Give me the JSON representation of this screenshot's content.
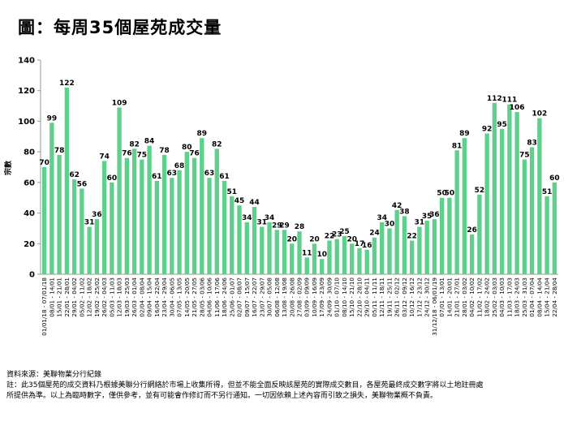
{
  "title": "圖：每周35個屋苑成交量",
  "chart_data": {
    "type": "bar",
    "title": "圖：每周35個屋苑成交量",
    "ylabel": "宗數",
    "xlabel": "",
    "ylim": [
      0,
      140
    ],
    "yticks": [
      0,
      20,
      40,
      60,
      80,
      100,
      120,
      140
    ],
    "grid": false,
    "bar_color": "#5fd08c",
    "categories": [
      "01/01/18 - 07/01/18",
      "08/01 - 14/01",
      "15/01 - 21/01",
      "22/01 - 28/01",
      "29/01 - 04/02",
      "05/02 - 11/02",
      "12/02 - 18/02",
      "19/02 - 25/02",
      "26/02 - 04/03",
      "05/03 - 11/03",
      "12/03 - 18/03",
      "19/03 - 25/03",
      "26/03 - 01/04",
      "02/04 - 08/04",
      "09/04 - 15/04",
      "16/04 - 22/04",
      "23/04 - 29/04",
      "30/04 - 06/05",
      "07/05 - 13/05",
      "14/05 - 20/05",
      "21/05 - 27/05",
      "28/05 - 03/06",
      "04/06 - 10/06",
      "11/06 - 17/06",
      "18/06 - 24/06",
      "25/06 - 01/07",
      "02/07 - 08/07",
      "09/07 - 15/07",
      "16/07 - 22/07",
      "23/07 - 29/07",
      "30/07 - 05/08",
      "06/08 - 12/08",
      "13/08 - 19/08",
      "20/08 - 26/08",
      "27/08 - 02/09",
      "03/09 - 09/09",
      "10/09 - 16/09",
      "17/09 - 23/09",
      "24/09 - 30/09",
      "01/10 - 07/10",
      "08/10 - 14/10",
      "15/10 - 21/10",
      "22/10 - 28/10",
      "29/10 - 04/11",
      "05/11 - 11/11",
      "12/11 - 18/11",
      "19/11 - 25/11",
      "26/11 - 02/12",
      "03/12 - 09/12",
      "10/12 - 16/12",
      "17/12 - 23/12",
      "24/12 - 30/12",
      "31/12/18 - 06/01/19",
      "07/01 - 13/01",
      "14/01 - 20/01",
      "21/01 - 27/01",
      "28/01 - 03/02",
      "04/02 - 10/02",
      "11/02 - 17/02",
      "18/02 - 24/02",
      "25/02 - 03/03",
      "04/03 - 10/03",
      "11/03 - 17/03",
      "18/03 - 24/03",
      "25/03 - 31/03",
      "01/04 - 07/04",
      "08/04 - 14/04",
      "15/04 - 21/04",
      "22/04 - 28/04"
    ],
    "values": [
      70,
      99,
      78,
      122,
      62,
      56,
      31,
      36,
      74,
      60,
      109,
      76,
      82,
      75,
      84,
      61,
      78,
      63,
      68,
      80,
      76,
      89,
      63,
      82,
      61,
      51,
      45,
      34,
      44,
      31,
      34,
      29,
      29,
      20,
      28,
      11,
      20,
      10,
      22,
      23,
      25,
      20,
      17,
      16,
      24,
      34,
      30,
      42,
      38,
      22,
      31,
      35,
      36,
      50,
      50,
      81,
      89,
      26,
      52,
      92,
      112,
      95,
      111,
      106,
      75,
      83,
      102,
      51,
      60
    ],
    "x_tick_labels": [
      "01/01/18 - 07/01/18",
      "08/01 - 14/01",
      "15/01 - 21/01",
      "22/01 - 28/01",
      "29/01 - 04/02",
      "05/02 - 11/02",
      "12/02 - 18/02",
      "19/02 - 25/02",
      "26/02 - 04/03",
      "05/03 - 11/03",
      "12/03 - 18/03",
      "19/03 - 25/03",
      "26/03 - 01/04",
      "02/04 - 08/04",
      "09/04 - 15/04",
      "16/04 - 22/04",
      "23/04 - 29/04",
      "30/04 - 06/05",
      "07/05 - 13/05",
      "14/05 - 20/05",
      "21/05 - 27/05",
      "28/05 - 03/06",
      "04/06 - 10/06",
      "11/06 - 17/06",
      "18/06 - 24/06",
      "25/06 - 01/07",
      "02/07 - 08/07",
      "09/07 - 15/07",
      "16/07 - 22/07",
      "23/07 - 29/07",
      "30/07 - 05/08",
      "06/08 - 12/08",
      "13/08 - 19/08",
      "20/08 - 26/08",
      "27/08 - 02/09",
      "03/09 - 09/09",
      "10/09 - 16/09",
      "17/09 - 23/09",
      "24/09 - 30/09",
      "01/10 - 07/10",
      "08/10 - 14/10",
      "15/10 - 21/10",
      "22/10 - 28/10",
      "29/10 - 04/11",
      "05/11 - 11/11",
      "12/11 - 18/11",
      "19/11 - 25/11",
      "26/11 - 02/12",
      "03/12 - 09/12",
      "10/12 - 16/12",
      "17/12 - 23/12",
      "24/12 - 30/12",
      "31/12/18 - 06/01/19",
      "07/01 - 13/01",
      "14/01 - 20/01",
      "21/01 - 27/01",
      "28/01 - 03/02",
      "04/02 - 10/02",
      "11/02 - 17/02",
      "18/02 - 24/02",
      "25/02 - 03/03",
      "04/03 - 10/03",
      "11/03 - 17/03",
      "18/03 - 24/03",
      "25/03 - 31/03",
      "01/04 - 07/04",
      "08/04 - 14/04",
      "15/04 - 21/04",
      "22/04 - 28/04"
    ]
  },
  "footer": {
    "source": "資料來源：美聯物業分行紀錄",
    "note_line1": "註：此35個屋苑的成交資料乃根據美聯分行網絡於市場上收集所得，但並不能全面反映該屋苑的實際成交數目，各屋苑最終成交數字將以土地註冊處",
    "note_line2": "所提供為準。以上為臨時數字，僅供參考，並有可能會作修訂而不另行通知。一切因依賴上述內容而引致之損失，美聯物業概不負責。"
  }
}
